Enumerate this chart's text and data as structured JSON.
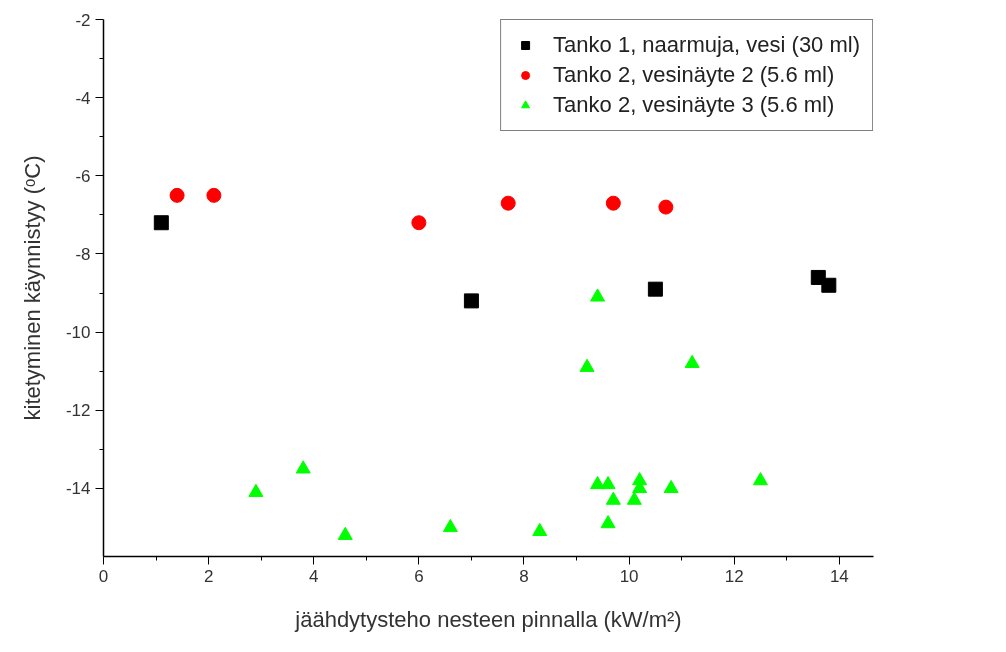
{
  "chart_data": {
    "type": "scatter",
    "xlabel": "jäähdytysteho nesteen pinnalla (kW/m²)",
    "ylabel": "kitetyminen käynnistyy (ᵒC)",
    "xlim": [
      0,
      14.65
    ],
    "ylim": [
      -15.74,
      -2
    ],
    "xticks": [
      0,
      2,
      4,
      6,
      8,
      10,
      12,
      14
    ],
    "yticks": [
      -14,
      -12,
      -10,
      -8,
      -6,
      -4,
      -2
    ],
    "grid": false,
    "legend": "top right",
    "series": [
      {
        "name": "Tanko 1, naarmuja, vesi (30 ml)",
        "color": "#000000",
        "marker": "square",
        "x": [
          1.1,
          7.0,
          10.5,
          13.6,
          13.8
        ],
        "values": [
          -7.2,
          -9.2,
          -8.9,
          -8.6,
          -8.8
        ]
      },
      {
        "name": "Tanko 2, vesinäyte 2 (5.6 ml)",
        "color": "#ff0000",
        "marker": "circle",
        "x": [
          1.4,
          2.1,
          6.0,
          7.7,
          9.7,
          10.7
        ],
        "values": [
          -6.5,
          -6.5,
          -7.2,
          -6.7,
          -6.7,
          -6.8
        ]
      },
      {
        "name": "Tanko 2, vesinäyte 3 (5.6 ml)",
        "color": "#00ff00",
        "marker": "triangle",
        "x": [
          2.9,
          3.8,
          4.6,
          6.6,
          8.3,
          9.2,
          9.4,
          9.4,
          9.6,
          9.6,
          9.7,
          10.1,
          10.2,
          10.2,
          10.8,
          11.2,
          12.5
        ],
        "values": [
          -14.1,
          -13.5,
          -15.2,
          -15.0,
          -15.1,
          -10.9,
          -9.1,
          -13.9,
          -13.9,
          -14.9,
          -14.3,
          -14.3,
          -13.8,
          -14.0,
          -14.0,
          -10.8,
          -13.8
        ]
      }
    ]
  }
}
